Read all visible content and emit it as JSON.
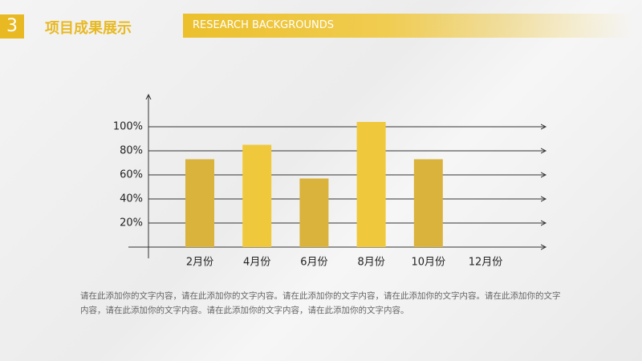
{
  "header": {
    "number": "3",
    "title": "项目成果展示",
    "subtitle": "RESEARCH BACKGROUNDS"
  },
  "chart_data": {
    "type": "bar",
    "categories": [
      "2月份",
      "4月份",
      "6月份",
      "8月份",
      "10月份",
      "12月份"
    ],
    "values": [
      73,
      85,
      57,
      104,
      73,
      null
    ],
    "colors": [
      "#d9b33c",
      "#f0c83c",
      "#d9b33c",
      "#f0c83c",
      "#d9b33c",
      "#f0c83c"
    ],
    "ylim": [
      0,
      125
    ],
    "yticks": [
      {
        "value": 20,
        "label": "20%"
      },
      {
        "value": 40,
        "label": "40%"
      },
      {
        "value": 60,
        "label": "60%"
      },
      {
        "value": 80,
        "label": "80%"
      },
      {
        "value": 100,
        "label": "100%"
      }
    ],
    "grid": true
  },
  "body_text": "请在此添加你的文字内容，请在此添加你的文字内容。请在此添加你的文字内容，请在此添加你的文字内容。请在此添加你的文字内容，请在此添加你的文字内容。请在此添加你的文字内容，请在此添加你的文字内容。"
}
